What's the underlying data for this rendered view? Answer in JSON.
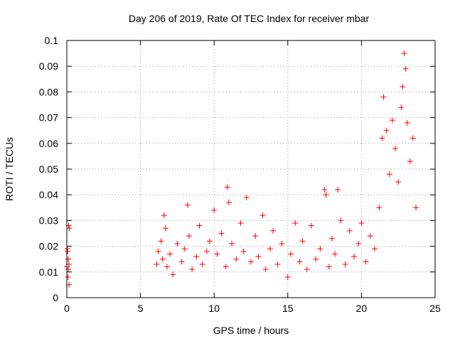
{
  "chart_data": {
    "type": "scatter",
    "title": "Day 206 of 2019, Rate Of TEC Index for receiver mbar",
    "xlabel": "GPS time / hours",
    "ylabel": "ROTI / TECUs",
    "xlim": [
      0,
      25
    ],
    "ylim": [
      0,
      0.1
    ],
    "x_ticks": [
      0,
      5,
      10,
      15,
      20,
      25
    ],
    "y_ticks": [
      0,
      0.01,
      0.02,
      0.03,
      0.04,
      0.05,
      0.06,
      0.07,
      0.08,
      0.09,
      0.1
    ],
    "x_tick_labels": [
      "0",
      "5",
      "10",
      "15",
      "20",
      "25"
    ],
    "y_tick_labels": [
      "0",
      "0.01",
      "0.02",
      "0.03",
      "0.04",
      "0.05",
      "0.06",
      "0.07",
      "0.08",
      "0.09",
      "0.1"
    ],
    "grid": true,
    "marker": "+",
    "marker_color": "#ff0000",
    "series": [
      {
        "name": "ROTI",
        "points": [
          [
            0.0,
            0.012
          ],
          [
            0.05,
            0.018
          ],
          [
            0.08,
            0.008
          ],
          [
            0.1,
            0.015
          ],
          [
            0.12,
            0.028
          ],
          [
            0.15,
            0.005
          ],
          [
            0.18,
            0.027
          ],
          [
            0.1,
            0.011
          ],
          [
            0.03,
            0.019
          ],
          [
            0.14,
            0.013
          ],
          [
            6.1,
            0.013
          ],
          [
            6.2,
            0.018
          ],
          [
            6.4,
            0.022
          ],
          [
            6.5,
            0.015
          ],
          [
            6.6,
            0.032
          ],
          [
            6.7,
            0.027
          ],
          [
            6.8,
            0.012
          ],
          [
            7.0,
            0.017
          ],
          [
            7.2,
            0.009
          ],
          [
            7.5,
            0.021
          ],
          [
            7.8,
            0.014
          ],
          [
            8.0,
            0.019
          ],
          [
            8.2,
            0.036
          ],
          [
            8.3,
            0.024
          ],
          [
            8.5,
            0.011
          ],
          [
            8.8,
            0.016
          ],
          [
            9.0,
            0.028
          ],
          [
            9.2,
            0.013
          ],
          [
            9.5,
            0.018
          ],
          [
            9.7,
            0.022
          ],
          [
            10.0,
            0.034
          ],
          [
            10.2,
            0.017
          ],
          [
            10.5,
            0.025
          ],
          [
            10.8,
            0.012
          ],
          [
            10.9,
            0.043
          ],
          [
            11.0,
            0.037
          ],
          [
            11.2,
            0.021
          ],
          [
            11.5,
            0.015
          ],
          [
            11.8,
            0.029
          ],
          [
            12.0,
            0.018
          ],
          [
            12.2,
            0.039
          ],
          [
            12.5,
            0.014
          ],
          [
            12.8,
            0.024
          ],
          [
            13.0,
            0.016
          ],
          [
            13.3,
            0.032
          ],
          [
            13.5,
            0.011
          ],
          [
            13.8,
            0.019
          ],
          [
            14.0,
            0.026
          ],
          [
            14.3,
            0.013
          ],
          [
            14.6,
            0.021
          ],
          [
            15.0,
            0.008
          ],
          [
            15.2,
            0.017
          ],
          [
            15.5,
            0.029
          ],
          [
            15.8,
            0.014
          ],
          [
            16.0,
            0.022
          ],
          [
            16.3,
            0.011
          ],
          [
            16.6,
            0.028
          ],
          [
            16.9,
            0.015
          ],
          [
            17.2,
            0.019
          ],
          [
            17.5,
            0.042
          ],
          [
            17.6,
            0.04
          ],
          [
            17.8,
            0.012
          ],
          [
            18.0,
            0.023
          ],
          [
            18.2,
            0.017
          ],
          [
            18.4,
            0.042
          ],
          [
            18.6,
            0.03
          ],
          [
            18.9,
            0.013
          ],
          [
            19.2,
            0.026
          ],
          [
            19.5,
            0.016
          ],
          [
            19.8,
            0.021
          ],
          [
            20.0,
            0.029
          ],
          [
            20.3,
            0.014
          ],
          [
            20.6,
            0.024
          ],
          [
            20.9,
            0.019
          ],
          [
            21.2,
            0.035
          ],
          [
            21.4,
            0.062
          ],
          [
            21.5,
            0.078
          ],
          [
            21.7,
            0.065
          ],
          [
            21.9,
            0.048
          ],
          [
            22.1,
            0.069
          ],
          [
            22.3,
            0.058
          ],
          [
            22.5,
            0.045
          ],
          [
            22.7,
            0.074
          ],
          [
            22.8,
            0.082
          ],
          [
            22.9,
            0.095
          ],
          [
            23.0,
            0.089
          ],
          [
            23.1,
            0.068
          ],
          [
            23.3,
            0.053
          ],
          [
            23.5,
            0.062
          ],
          [
            23.7,
            0.035
          ]
        ]
      }
    ]
  }
}
